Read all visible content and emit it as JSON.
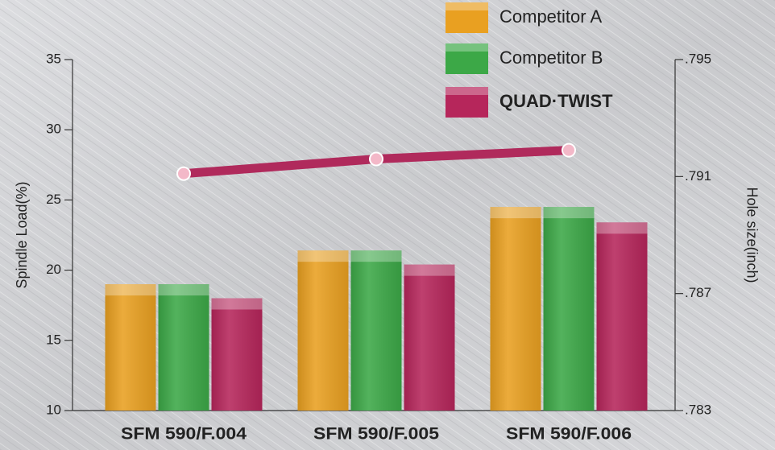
{
  "chart_data": {
    "type": "bar",
    "categories": [
      "SFM 590/F.004",
      "SFM 590/F.005",
      "SFM 590/F.006"
    ],
    "series": [
      {
        "name": "Competitor A",
        "color": "#e9a021",
        "values": [
          19,
          21.4,
          24.5
        ]
      },
      {
        "name": "Competitor B",
        "color": "#3ca847",
        "values": [
          19,
          21.4,
          24.5
        ]
      },
      {
        "name": "QUAD·TWIST",
        "color": "#b6265b",
        "values": [
          18,
          20.4,
          23.4
        ]
      }
    ],
    "line": {
      "color": "#b02a5c",
      "values": [
        0.7911,
        0.7916,
        0.7919
      ],
      "axis": "y2"
    },
    "ylabel": "Spindle Load(%)",
    "y2label": "Hole size(inch)",
    "ylim": [
      10,
      35
    ],
    "yticks": [
      10,
      15,
      20,
      25,
      30,
      35
    ],
    "y2lim": [
      0.783,
      0.795
    ],
    "y2ticks": [
      {
        "value": 0.783,
        "label": ".783"
      },
      {
        "value": 0.787,
        "label": ".787"
      },
      {
        "value": 0.791,
        "label": ".791"
      },
      {
        "value": 0.795,
        "label": ".795"
      }
    ],
    "legend": "top-right",
    "grid": false
  }
}
